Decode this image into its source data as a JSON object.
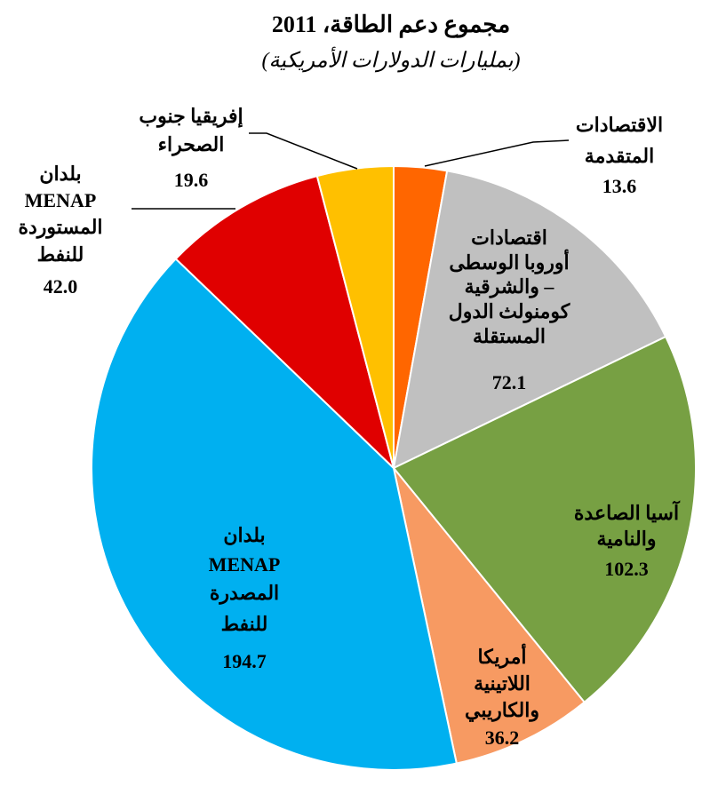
{
  "chart_data": {
    "type": "pie",
    "title": "مجموع دعم الطاقة، 2011",
    "subtitle": "(بمليارات الدولارات الأمريكية)",
    "categories": [
      [
        "الاقتصادات",
        "المتقدمة"
      ],
      [
        "اقتصادات",
        "أوروبا الوسطى",
        "والشرقية –",
        "كومنولث الدول",
        "المستقلة"
      ],
      [
        "آسيا الصاعدة",
        "والنامية"
      ],
      [
        "أمريكا",
        "اللاتينية",
        "والكاريبي"
      ],
      [
        "بلدان",
        "MENAP",
        "المصدرة",
        "للنفط"
      ],
      [
        "بلدان",
        "MENAP",
        "المستوردة",
        "للنفط"
      ],
      [
        "إفريقيا جنوب",
        "الصحراء"
      ]
    ],
    "values": [
      13.6,
      72.1,
      102.3,
      36.2,
      194.7,
      42.0,
      19.6
    ],
    "value_labels": [
      "13.6",
      "72.1",
      "102.3",
      "36.2",
      "194.7",
      "42.0",
      "19.6"
    ],
    "colors": [
      "#FF6600",
      "#C0C0C0",
      "#77A043",
      "#F79A62",
      "#00B0F0",
      "#E00000",
      "#FFC000"
    ]
  }
}
